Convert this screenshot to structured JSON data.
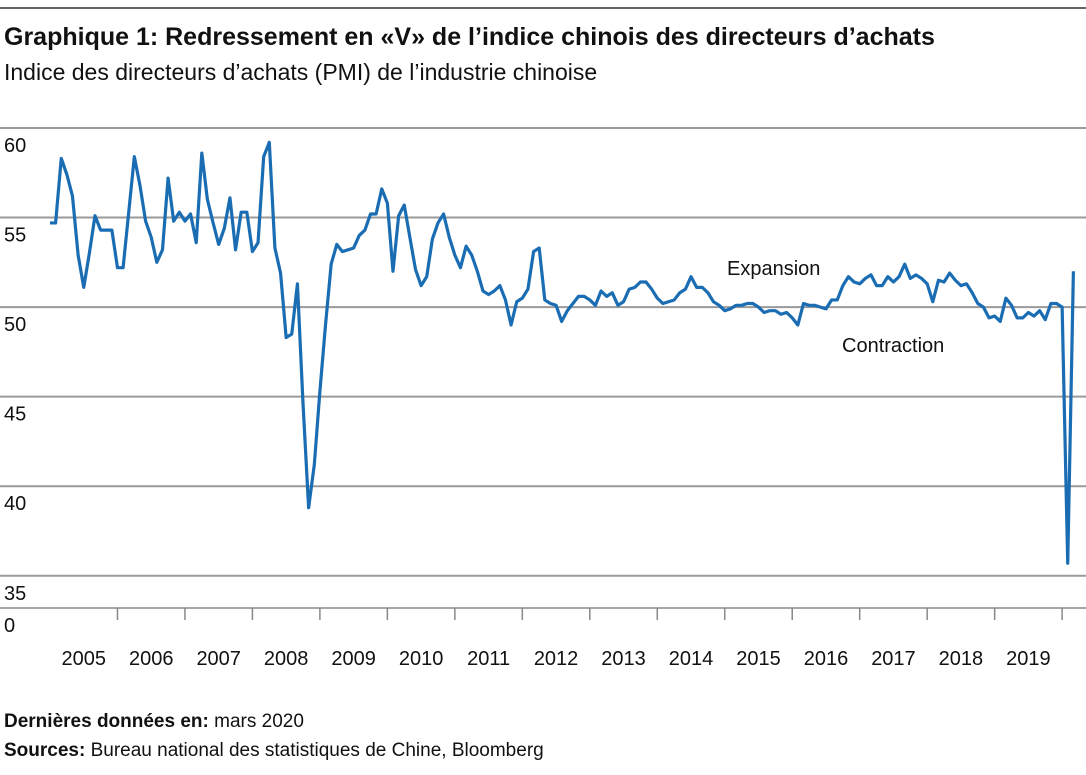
{
  "chart_data": {
    "type": "line",
    "title": "Graphique 1: Redressement en «V» de l’indice chinois des directeurs d’achats",
    "subtitle": "Indice des directeurs d’achats (PMI) de l’industrie chinoise",
    "annotations": [
      "Expansion",
      "Contraction"
    ],
    "footer": [
      {
        "label": "Dernières données en:",
        "text": "mars 2020"
      },
      {
        "label": "Sources:",
        "text": "Bureau national des statistiques de Chine, Bloomberg"
      }
    ],
    "axis_break_label": "0",
    "xlim": [
      2005,
      2020.25
    ],
    "xticks": [
      {
        "value": 2005.5,
        "label": "2005"
      },
      {
        "value": 2006.5,
        "label": "2006"
      },
      {
        "value": 2007.5,
        "label": "2007"
      },
      {
        "value": 2008.5,
        "label": "2008"
      },
      {
        "value": 2009.5,
        "label": "2009"
      },
      {
        "value": 2010.5,
        "label": "2010"
      },
      {
        "value": 2011.5,
        "label": "2011"
      },
      {
        "value": 2012.5,
        "label": "2012"
      },
      {
        "value": 2013.5,
        "label": "2013"
      },
      {
        "value": 2014.5,
        "label": "2014"
      },
      {
        "value": 2015.5,
        "label": "2015"
      },
      {
        "value": 2016.5,
        "label": "2016"
      },
      {
        "value": 2017.5,
        "label": "2017"
      },
      {
        "value": 2018.5,
        "label": "2018"
      },
      {
        "value": 2019.5,
        "label": "2019"
      }
    ],
    "minor_xticks": [
      2006,
      2007,
      2008,
      2009,
      2010,
      2011,
      2012,
      2013,
      2014,
      2015,
      2016,
      2017,
      2018,
      2019,
      2020
    ],
    "ylim": [
      33.2,
      60
    ],
    "yticks": [
      35,
      40,
      45,
      50,
      55,
      60
    ],
    "grid": true,
    "x": [
      2005,
      2005.083,
      2005.167,
      2005.25,
      2005.333,
      2005.417,
      2005.5,
      2005.583,
      2005.667,
      2005.75,
      2005.833,
      2005.917,
      2006,
      2006.083,
      2006.167,
      2006.25,
      2006.333,
      2006.417,
      2006.5,
      2006.583,
      2006.667,
      2006.75,
      2006.833,
      2006.917,
      2007,
      2007.083,
      2007.167,
      2007.25,
      2007.333,
      2007.417,
      2007.5,
      2007.583,
      2007.667,
      2007.75,
      2007.833,
      2007.917,
      2008,
      2008.083,
      2008.167,
      2008.25,
      2008.333,
      2008.417,
      2008.5,
      2008.583,
      2008.667,
      2008.75,
      2008.833,
      2008.917,
      2009,
      2009.083,
      2009.167,
      2009.25,
      2009.333,
      2009.417,
      2009.5,
      2009.583,
      2009.667,
      2009.75,
      2009.833,
      2009.917,
      2010,
      2010.083,
      2010.167,
      2010.25,
      2010.333,
      2010.417,
      2010.5,
      2010.583,
      2010.667,
      2010.75,
      2010.833,
      2010.917,
      2011,
      2011.083,
      2011.167,
      2011.25,
      2011.333,
      2011.417,
      2011.5,
      2011.583,
      2011.667,
      2011.75,
      2011.833,
      2011.917,
      2012,
      2012.083,
      2012.167,
      2012.25,
      2012.333,
      2012.417,
      2012.5,
      2012.583,
      2012.667,
      2012.75,
      2012.833,
      2012.917,
      2013,
      2013.083,
      2013.167,
      2013.25,
      2013.333,
      2013.417,
      2013.5,
      2013.583,
      2013.667,
      2013.75,
      2013.833,
      2013.917,
      2014,
      2014.083,
      2014.167,
      2014.25,
      2014.333,
      2014.417,
      2014.5,
      2014.583,
      2014.667,
      2014.75,
      2014.833,
      2014.917,
      2015,
      2015.083,
      2015.167,
      2015.25,
      2015.333,
      2015.417,
      2015.5,
      2015.583,
      2015.667,
      2015.75,
      2015.833,
      2015.917,
      2016,
      2016.083,
      2016.167,
      2016.25,
      2016.333,
      2016.417,
      2016.5,
      2016.583,
      2016.667,
      2016.75,
      2016.833,
      2016.917,
      2017,
      2017.083,
      2017.167,
      2017.25,
      2017.333,
      2017.417,
      2017.5,
      2017.583,
      2017.667,
      2017.75,
      2017.833,
      2017.917,
      2018,
      2018.083,
      2018.167,
      2018.25,
      2018.333,
      2018.417,
      2018.5,
      2018.583,
      2018.667,
      2018.75,
      2018.833,
      2018.917,
      2019,
      2019.083,
      2019.167,
      2019.25,
      2019.333,
      2019.417,
      2019.5,
      2019.583,
      2019.667,
      2019.75,
      2019.833,
      2019.917,
      2020,
      2020.083,
      2020.167
    ],
    "series": [
      {
        "color": "#1a6db3",
        "values": [
          54.7,
          54.7,
          58.3,
          57.4,
          56.2,
          52.9,
          51.1,
          53.0,
          55.1,
          54.3,
          54.3,
          54.3,
          52.2,
          52.2,
          55.3,
          58.4,
          56.8,
          54.8,
          53.9,
          52.5,
          53.2,
          57.2,
          54.8,
          55.3,
          54.8,
          55.2,
          53.6,
          58.6,
          56.0,
          54.7,
          53.5,
          54.4,
          56.1,
          53.2,
          55.3,
          55.3,
          53.1,
          53.6,
          58.4,
          59.2,
          53.3,
          51.9,
          48.3,
          48.5,
          51.3,
          44.6,
          38.8,
          41.2,
          45.3,
          49.0,
          52.4,
          53.5,
          53.1,
          53.2,
          53.3,
          54.0,
          54.3,
          55.2,
          55.2,
          56.6,
          55.8,
          52.0,
          55.1,
          55.7,
          53.9,
          52.1,
          51.2,
          51.7,
          53.8,
          54.7,
          55.2,
          53.9,
          52.9,
          52.2,
          53.4,
          52.9,
          52.0,
          50.9,
          50.7,
          50.9,
          51.2,
          50.4,
          49.0,
          50.3,
          50.5,
          51.0,
          53.1,
          53.3,
          50.4,
          50.2,
          50.1,
          49.2,
          49.8,
          50.2,
          50.6,
          50.6,
          50.4,
          50.1,
          50.9,
          50.6,
          50.8,
          50.1,
          50.3,
          51.0,
          51.1,
          51.4,
          51.4,
          51.0,
          50.5,
          50.2,
          50.3,
          50.4,
          50.8,
          51.0,
          51.7,
          51.1,
          51.1,
          50.8,
          50.3,
          50.1,
          49.8,
          49.9,
          50.1,
          50.1,
          50.2,
          50.2,
          50.0,
          49.7,
          49.8,
          49.8,
          49.6,
          49.7,
          49.4,
          49.0,
          50.2,
          50.1,
          50.1,
          50.0,
          49.9,
          50.4,
          50.4,
          51.2,
          51.7,
          51.4,
          51.3,
          51.6,
          51.8,
          51.2,
          51.2,
          51.7,
          51.4,
          51.7,
          52.4,
          51.6,
          51.8,
          51.6,
          51.3,
          50.3,
          51.5,
          51.4,
          51.9,
          51.5,
          51.2,
          51.3,
          50.8,
          50.2,
          50.0,
          49.4,
          49.5,
          49.2,
          50.5,
          50.1,
          49.4,
          49.4,
          49.7,
          49.5,
          49.8,
          49.3,
          50.2,
          50.2,
          50.0,
          35.7,
          52.0
        ]
      }
    ]
  }
}
